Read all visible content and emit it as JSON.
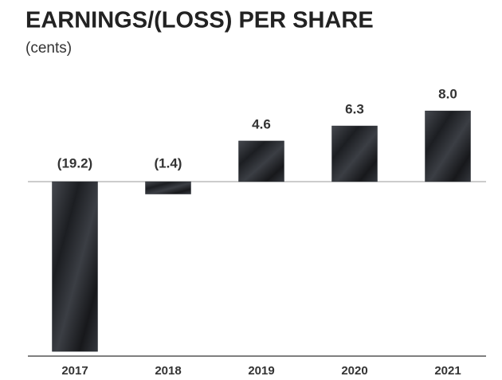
{
  "chart_data": {
    "type": "bar",
    "title": "EARNINGS/(LOSS) PER SHARE",
    "subtitle": "(cents)",
    "categories": [
      "2017",
      "2018",
      "2019",
      "2020",
      "2021"
    ],
    "values": [
      -19.2,
      -1.4,
      4.6,
      6.3,
      8.0
    ],
    "value_labels": [
      "(19.2)",
      "(1.4)",
      "4.6",
      "6.3",
      "8.0"
    ],
    "color": "#2b2e34"
  }
}
